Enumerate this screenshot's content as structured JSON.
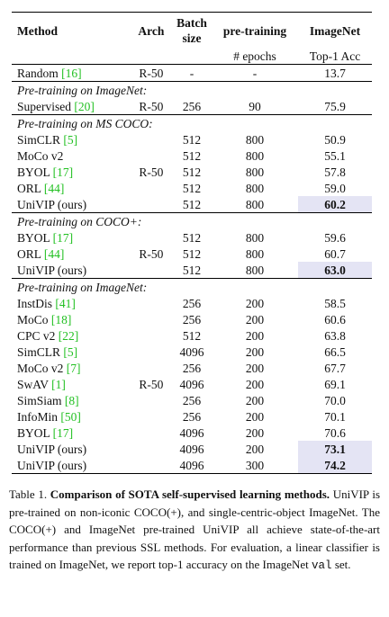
{
  "header": {
    "method": "Method",
    "arch": "Arch",
    "batch": "Batch size",
    "pretraining": "pre-training",
    "imagenet": "ImageNet",
    "epochs": "# epochs",
    "top1": "Top-1 Acc"
  },
  "sections": [
    {
      "arch": "R-50",
      "rows": [
        {
          "method": "Random",
          "cite": "[16]",
          "batch": "-",
          "epochs": "-",
          "top1": "13.7"
        }
      ]
    },
    {
      "title": "Pre-training on ImageNet:",
      "arch": "R-50",
      "rows": [
        {
          "method": "Supervised",
          "cite": "[20]",
          "batch": "256",
          "epochs": "90",
          "top1": "75.9"
        }
      ]
    },
    {
      "title": "Pre-training on MS COCO:",
      "arch": "R-50",
      "rows": [
        {
          "method": "SimCLR",
          "cite": "[5]",
          "batch": "512",
          "epochs": "800",
          "top1": "50.9"
        },
        {
          "method": "MoCo v2",
          "batch": "512",
          "epochs": "800",
          "top1": "55.1"
        },
        {
          "method": "BYOL",
          "cite": "[17]",
          "batch": "512",
          "epochs": "800",
          "top1": "57.8"
        },
        {
          "method": "ORL",
          "cite": "[44]",
          "batch": "512",
          "epochs": "800",
          "top1": "59.0"
        },
        {
          "method": "UniVIP (ours)",
          "batch": "512",
          "epochs": "800",
          "top1": "60.2",
          "highlight": true
        }
      ]
    },
    {
      "title": "Pre-training on COCO+:",
      "arch": "R-50",
      "rows": [
        {
          "method": "BYOL",
          "cite": "[17]",
          "batch": "512",
          "epochs": "800",
          "top1": "59.6"
        },
        {
          "method": "ORL",
          "cite": "[44]",
          "batch": "512",
          "epochs": "800",
          "top1": "60.7"
        },
        {
          "method": "UniVIP (ours)",
          "batch": "512",
          "epochs": "800",
          "top1": "63.0",
          "highlight": true
        }
      ]
    },
    {
      "title": "Pre-training on ImageNet:",
      "arch": "R-50",
      "rows": [
        {
          "method": "InstDis",
          "cite": "[41]",
          "batch": "256",
          "epochs": "200",
          "top1": "58.5"
        },
        {
          "method": "MoCo",
          "cite": "[18]",
          "batch": "256",
          "epochs": "200",
          "top1": "60.6"
        },
        {
          "method": "CPC v2",
          "cite": "[22]",
          "batch": "512",
          "epochs": "200",
          "top1": "63.8"
        },
        {
          "method": "SimCLR",
          "cite": "[5]",
          "batch": "4096",
          "epochs": "200",
          "top1": "66.5"
        },
        {
          "method": "MoCo v2",
          "cite": "[7]",
          "batch": "256",
          "epochs": "200",
          "top1": "67.7"
        },
        {
          "method": "SwAV",
          "cite": "[1]",
          "batch": "4096",
          "epochs": "200",
          "top1": "69.1"
        },
        {
          "method": "SimSiam",
          "cite": "[8]",
          "batch": "256",
          "epochs": "200",
          "top1": "70.0"
        },
        {
          "method": "InfoMin",
          "cite": "[50]",
          "batch": "256",
          "epochs": "200",
          "top1": "70.1"
        },
        {
          "method": "BYOL",
          "cite": "[17]",
          "batch": "4096",
          "epochs": "200",
          "top1": "70.6"
        },
        {
          "method": "UniVIP (ours)",
          "batch": "4096",
          "epochs": "200",
          "top1": "73.1",
          "highlight": true
        },
        {
          "method": "UniVIP (ours)",
          "batch": "4096",
          "epochs": "300",
          "top1": "74.2",
          "highlight": true
        }
      ]
    }
  ],
  "caption": {
    "label": "Table 1.",
    "bold": "Comparison of SOTA self-supervised learning methods.",
    "text": "UniVIP is pre-trained on non-iconic COCO(+), and single-centric-object ImageNet. The COCO(+) and ImageNet pre-trained UniVIP all achieve state-of-the-art performance than previous SSL methods. For evaluation, a linear classifier is trained on ImageNet, we report top-1 accuracy on the ImageNet",
    "code": "val",
    "end": "set."
  }
}
